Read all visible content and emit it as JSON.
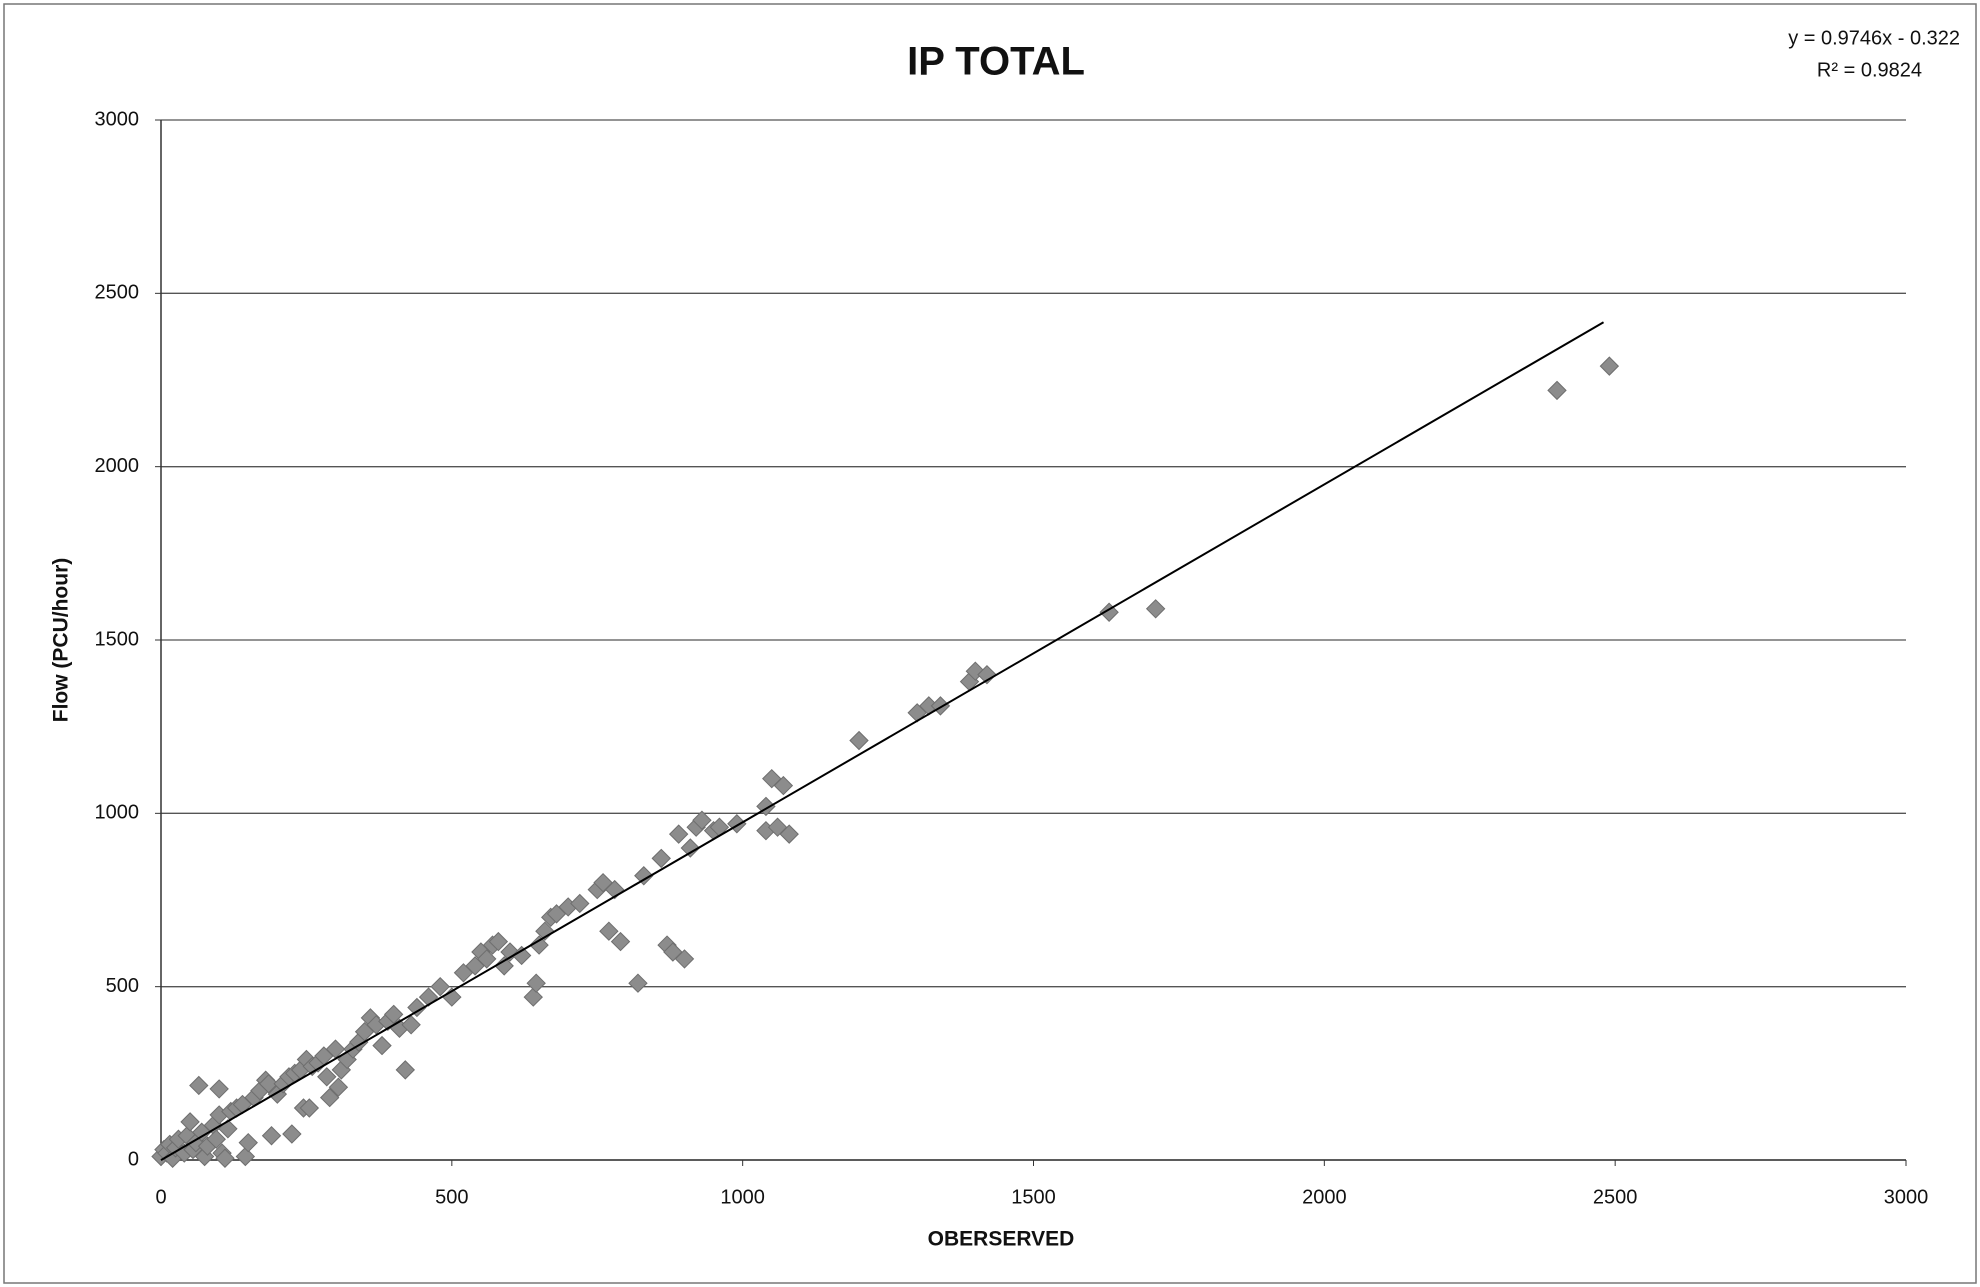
{
  "chart_data": {
    "type": "scatter",
    "title": "IP TOTAL",
    "x_label": "OBERSERVED",
    "y_label": "Flow (PCU/hour)",
    "xlim": [
      0,
      3000
    ],
    "ylim": [
      0,
      3000
    ],
    "xticks": [
      0,
      500,
      1000,
      1500,
      2000,
      2500,
      3000
    ],
    "yticks": [
      0,
      500,
      1000,
      1500,
      2000,
      2500,
      3000
    ],
    "grid": true,
    "color": "#8c8c8c",
    "x": [
      0,
      5,
      10,
      15,
      20,
      25,
      30,
      40,
      45,
      50,
      55,
      60,
      65,
      70,
      75,
      80,
      90,
      95,
      100,
      100,
      105,
      110,
      115,
      120,
      130,
      140,
      145,
      150,
      160,
      170,
      180,
      185,
      190,
      200,
      210,
      220,
      225,
      230,
      240,
      245,
      250,
      255,
      260,
      270,
      280,
      285,
      290,
      300,
      305,
      310,
      320,
      330,
      340,
      350,
      360,
      370,
      380,
      390,
      400,
      410,
      420,
      430,
      440,
      460,
      480,
      500,
      520,
      540,
      550,
      560,
      570,
      580,
      590,
      600,
      620,
      640,
      645,
      650,
      660,
      670,
      680,
      700,
      720,
      750,
      760,
      770,
      780,
      790,
      820,
      830,
      860,
      870,
      880,
      890,
      900,
      910,
      920,
      930,
      950,
      960,
      990,
      1040,
      1040,
      1050,
      1060,
      1070,
      1080,
      1200,
      1300,
      1320,
      1340,
      1390,
      1400,
      1420,
      1630,
      1710,
      2400,
      2490
    ],
    "values": [
      10,
      30,
      20,
      45,
      5,
      35,
      60,
      20,
      70,
      110,
      30,
      50,
      215,
      80,
      10,
      40,
      100,
      60,
      130,
      205,
      20,
      5,
      90,
      140,
      150,
      160,
      10,
      50,
      180,
      200,
      230,
      220,
      70,
      190,
      220,
      240,
      75,
      250,
      260,
      150,
      290,
      150,
      270,
      280,
      300,
      240,
      180,
      320,
      210,
      260,
      290,
      320,
      340,
      370,
      410,
      390,
      330,
      400,
      420,
      380,
      260,
      390,
      440,
      470,
      500,
      470,
      540,
      560,
      600,
      580,
      620,
      630,
      560,
      600,
      590,
      470,
      510,
      620,
      660,
      700,
      710,
      730,
      740,
      780,
      800,
      660,
      780,
      630,
      510,
      820,
      870,
      620,
      600,
      940,
      580,
      900,
      960,
      980,
      950,
      960,
      970,
      1020,
      950,
      1100,
      960,
      1080,
      940,
      1210,
      1290,
      1310,
      1310,
      1380,
      1410,
      1400,
      1580,
      1590,
      2220,
      2290
    ],
    "trendline": {
      "equation": "y = 0.9746x - 0.322",
      "r2": "R² = 0.9824",
      "slope": 0.9746,
      "intercept": -0.322,
      "x_range": [
        0,
        2480
      ],
      "color": "#000000"
    }
  }
}
